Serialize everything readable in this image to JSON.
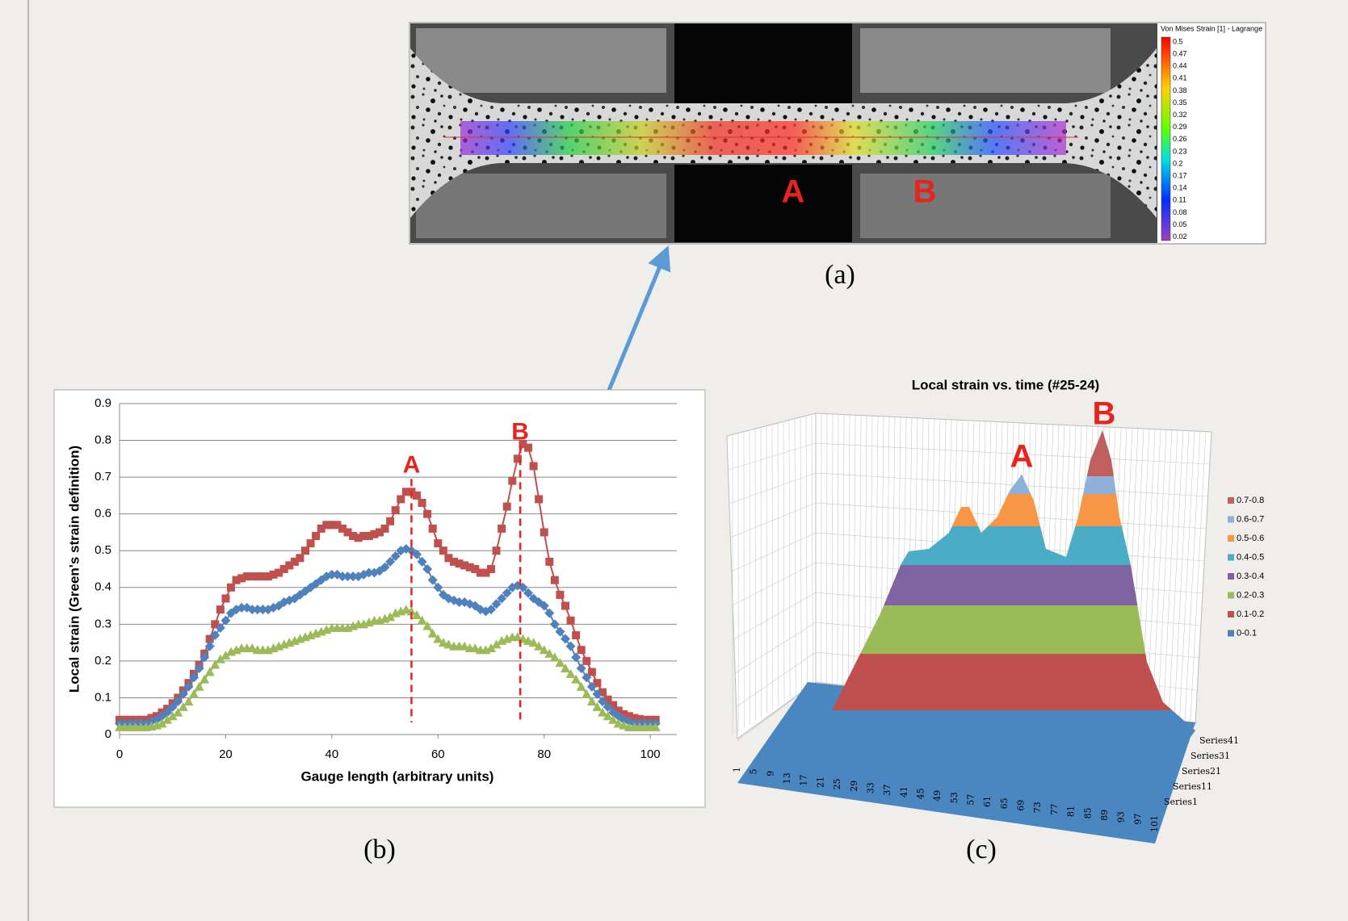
{
  "panel_a": {
    "caption": "(a)",
    "colorbar_title": "Von Mises Strain [1] - Lagrange",
    "colorbar_ticks": [
      0.5,
      0.47,
      0.44,
      0.41,
      0.38,
      0.35,
      0.32,
      0.29,
      0.26,
      0.23,
      0.2,
      0.17,
      0.14,
      0.11,
      0.08,
      0.05,
      0.02
    ],
    "labels": [
      "A",
      "B"
    ]
  },
  "chart_data": {
    "type": "line",
    "caption": "(b)",
    "xlabel": "Gauge length (arbitrary units)",
    "ylabel": "Local strain (Green's strain definition)",
    "x": [
      0,
      1,
      2,
      3,
      4,
      5,
      6,
      7,
      8,
      9,
      10,
      11,
      12,
      13,
      14,
      15,
      16,
      17,
      18,
      19,
      20,
      21,
      22,
      23,
      24,
      25,
      26,
      27,
      28,
      29,
      30,
      31,
      32,
      33,
      34,
      35,
      36,
      37,
      38,
      39,
      40,
      41,
      42,
      43,
      44,
      45,
      46,
      47,
      48,
      49,
      50,
      51,
      52,
      53,
      54,
      55,
      56,
      57,
      58,
      59,
      60,
      61,
      62,
      63,
      64,
      65,
      66,
      67,
      68,
      69,
      70,
      71,
      72,
      73,
      74,
      75,
      76,
      77,
      78,
      79,
      80,
      81,
      82,
      83,
      84,
      85,
      86,
      87,
      88,
      89,
      90,
      91,
      92,
      93,
      94,
      95,
      96,
      97,
      98,
      99,
      100,
      101
    ],
    "series": [
      {
        "color": "#c0504d",
        "marker": "square",
        "values": [
          0.04,
          0.04,
          0.04,
          0.04,
          0.04,
          0.04,
          0.045,
          0.05,
          0.06,
          0.07,
          0.085,
          0.1,
          0.12,
          0.14,
          0.165,
          0.19,
          0.22,
          0.26,
          0.3,
          0.34,
          0.37,
          0.4,
          0.42,
          0.425,
          0.43,
          0.43,
          0.43,
          0.43,
          0.43,
          0.435,
          0.44,
          0.45,
          0.46,
          0.47,
          0.48,
          0.5,
          0.52,
          0.54,
          0.56,
          0.57,
          0.57,
          0.57,
          0.56,
          0.55,
          0.54,
          0.535,
          0.54,
          0.54,
          0.545,
          0.55,
          0.56,
          0.58,
          0.61,
          0.64,
          0.66,
          0.66,
          0.65,
          0.63,
          0.6,
          0.56,
          0.52,
          0.5,
          0.48,
          0.47,
          0.465,
          0.46,
          0.455,
          0.45,
          0.44,
          0.44,
          0.45,
          0.5,
          0.56,
          0.62,
          0.69,
          0.75,
          0.79,
          0.78,
          0.73,
          0.64,
          0.55,
          0.47,
          0.42,
          0.38,
          0.35,
          0.31,
          0.27,
          0.23,
          0.2,
          0.17,
          0.14,
          0.115,
          0.095,
          0.08,
          0.065,
          0.055,
          0.05,
          0.045,
          0.042,
          0.04,
          0.04,
          0.04
        ]
      },
      {
        "color": "#4f81bd",
        "marker": "diamond",
        "values": [
          0.03,
          0.03,
          0.03,
          0.03,
          0.03,
          0.03,
          0.035,
          0.04,
          0.05,
          0.06,
          0.075,
          0.09,
          0.11,
          0.13,
          0.155,
          0.18,
          0.21,
          0.24,
          0.27,
          0.29,
          0.31,
          0.33,
          0.34,
          0.345,
          0.345,
          0.34,
          0.34,
          0.34,
          0.34,
          0.345,
          0.35,
          0.36,
          0.365,
          0.37,
          0.38,
          0.39,
          0.4,
          0.41,
          0.42,
          0.43,
          0.435,
          0.435,
          0.43,
          0.43,
          0.43,
          0.43,
          0.435,
          0.44,
          0.44,
          0.445,
          0.455,
          0.47,
          0.485,
          0.5,
          0.505,
          0.5,
          0.49,
          0.47,
          0.45,
          0.42,
          0.4,
          0.38,
          0.37,
          0.365,
          0.36,
          0.36,
          0.355,
          0.35,
          0.34,
          0.335,
          0.34,
          0.355,
          0.37,
          0.385,
          0.4,
          0.405,
          0.4,
          0.385,
          0.37,
          0.36,
          0.35,
          0.33,
          0.3,
          0.28,
          0.26,
          0.24,
          0.21,
          0.18,
          0.155,
          0.13,
          0.11,
          0.09,
          0.075,
          0.06,
          0.05,
          0.04,
          0.035,
          0.03,
          0.03,
          0.03,
          0.03,
          0.03
        ]
      },
      {
        "color": "#9bbb59",
        "marker": "triangle",
        "values": [
          0.02,
          0.02,
          0.02,
          0.02,
          0.02,
          0.02,
          0.022,
          0.025,
          0.03,
          0.04,
          0.05,
          0.06,
          0.075,
          0.09,
          0.11,
          0.13,
          0.15,
          0.17,
          0.19,
          0.205,
          0.215,
          0.225,
          0.23,
          0.235,
          0.235,
          0.235,
          0.23,
          0.23,
          0.23,
          0.235,
          0.24,
          0.245,
          0.25,
          0.255,
          0.26,
          0.265,
          0.27,
          0.275,
          0.28,
          0.285,
          0.29,
          0.29,
          0.29,
          0.29,
          0.295,
          0.3,
          0.3,
          0.305,
          0.31,
          0.31,
          0.315,
          0.32,
          0.33,
          0.335,
          0.34,
          0.335,
          0.325,
          0.31,
          0.295,
          0.275,
          0.26,
          0.25,
          0.245,
          0.24,
          0.24,
          0.24,
          0.235,
          0.235,
          0.23,
          0.23,
          0.235,
          0.245,
          0.255,
          0.26,
          0.265,
          0.265,
          0.26,
          0.255,
          0.25,
          0.24,
          0.23,
          0.22,
          0.21,
          0.195,
          0.18,
          0.165,
          0.15,
          0.13,
          0.11,
          0.09,
          0.075,
          0.06,
          0.05,
          0.04,
          0.03,
          0.025,
          0.02,
          0.02,
          0.02,
          0.02,
          0.02,
          0.02
        ]
      }
    ],
    "xlim": [
      0,
      105
    ],
    "ylim": [
      0,
      0.9
    ],
    "xticks": [
      0,
      20,
      40,
      60,
      80,
      100
    ],
    "yticks": [
      0,
      0.1,
      0.2,
      0.3,
      0.4,
      0.5,
      0.6,
      0.7,
      0.8,
      0.9
    ],
    "grid": true,
    "annotations": [
      {
        "text": "A",
        "x": 55
      },
      {
        "text": "B",
        "x": 75.5
      }
    ]
  },
  "panel_c": {
    "title": "Local strain vs. time (#25-24)",
    "caption": "(c)",
    "labels": [
      "A",
      "B"
    ],
    "legend": [
      {
        "label": "0.7-0.8",
        "color": "#c0605e"
      },
      {
        "label": "0.6-0.7",
        "color": "#8fb0d9"
      },
      {
        "label": "0.5-0.6",
        "color": "#f79646"
      },
      {
        "label": "0.4-0.5",
        "color": "#4bacc6"
      },
      {
        "label": "0.3-0.4",
        "color": "#8064a2"
      },
      {
        "label": "0.2-0.3",
        "color": "#9bbb59"
      },
      {
        "label": "0.1-0.2",
        "color": "#c0504d"
      },
      {
        "label": "0-0.1",
        "color": "#4f81bd"
      }
    ],
    "x_labels": [
      1,
      5,
      9,
      13,
      17,
      21,
      25,
      29,
      33,
      37,
      41,
      45,
      49,
      53,
      57,
      61,
      65,
      69,
      73,
      77,
      81,
      85,
      89,
      93,
      97,
      101
    ],
    "series_labels": [
      "Series41",
      "Series31",
      "Series21",
      "Series11",
      "Series1"
    ]
  }
}
